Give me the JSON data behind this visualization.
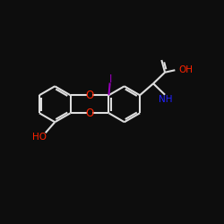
{
  "bg_color": "#0d0d0d",
  "line_color": "#dddddd",
  "o_color": "#ff2200",
  "n_color": "#2222ff",
  "i_color": "#9900bb",
  "ho_color": "#ff2200",
  "lw": 1.5,
  "fs_label": 7.5,
  "fs_i": 8.5,
  "ring_r": 0.8,
  "xlim": [
    0,
    10
  ],
  "ylim": [
    0,
    10
  ]
}
